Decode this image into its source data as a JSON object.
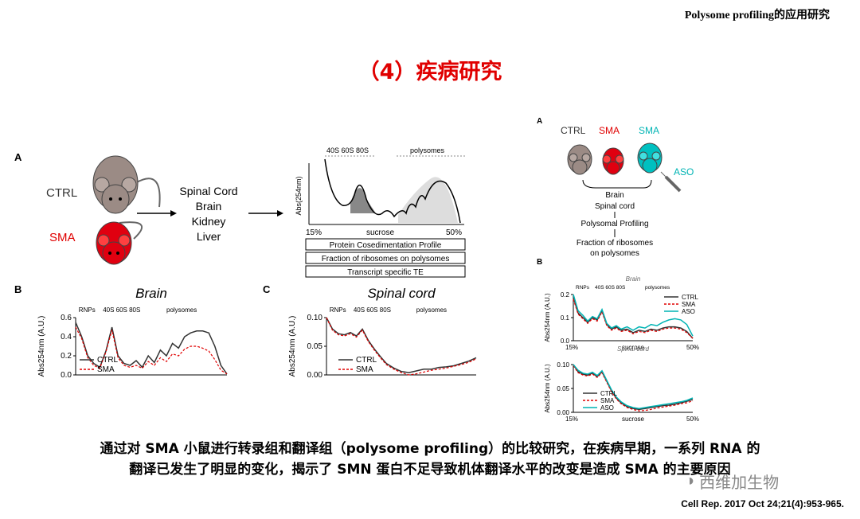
{
  "header": "Polysome profiling的应用研究",
  "title": "（4）疾病研究",
  "left_panel": {
    "panel_a": "A",
    "panel_b": "B",
    "panel_c": "C",
    "mouse_ctrl": "CTRL",
    "mouse_sma": "SMA",
    "tissues": [
      "Spinal Cord",
      "Brain",
      "Kidney",
      "Liver"
    ],
    "profile_top_labels": [
      "40S 60S 80S",
      "polysomes"
    ],
    "profile_ylabel": "Abs(254nm)",
    "profile_x_left": "15%",
    "profile_x_mid": "sucrose",
    "profile_x_right": "50%",
    "boxes": [
      "Protein Cosedimentation Profile",
      "Fraction of ribosomes on polysomes",
      "Transcript specific TE"
    ]
  },
  "chart_data": [
    {
      "id": "brain-left",
      "type": "line",
      "title": "Brain",
      "ylabel": "Abs254nm (A.U.)",
      "ylim": [
        0,
        0.6
      ],
      "yticks": [
        "0.0",
        "0.2",
        "0.4",
        "0.6"
      ],
      "region_labels": [
        "RNPs",
        "40S 60S 80S",
        "polysomes"
      ],
      "series": [
        {
          "name": "CTRL",
          "x": [
            0,
            0.04,
            0.08,
            0.12,
            0.16,
            0.2,
            0.24,
            0.28,
            0.32,
            0.36,
            0.4,
            0.44,
            0.48,
            0.52,
            0.56,
            0.6,
            0.64,
            0.68,
            0.72,
            0.76,
            0.8,
            0.84,
            0.88,
            0.92,
            0.96,
            1.0
          ],
          "values": [
            0.55,
            0.4,
            0.2,
            0.12,
            0.08,
            0.25,
            0.5,
            0.2,
            0.12,
            0.1,
            0.15,
            0.08,
            0.2,
            0.13,
            0.26,
            0.2,
            0.33,
            0.28,
            0.4,
            0.44,
            0.46,
            0.46,
            0.44,
            0.3,
            0.1,
            0.01
          ]
        },
        {
          "name": "SMA",
          "x": [
            0,
            0.04,
            0.08,
            0.12,
            0.16,
            0.2,
            0.24,
            0.28,
            0.32,
            0.36,
            0.4,
            0.44,
            0.48,
            0.52,
            0.56,
            0.6,
            0.64,
            0.68,
            0.72,
            0.76,
            0.8,
            0.84,
            0.88,
            0.92,
            0.96,
            1.0
          ],
          "values": [
            0.5,
            0.38,
            0.18,
            0.1,
            0.07,
            0.24,
            0.47,
            0.18,
            0.1,
            0.08,
            0.1,
            0.07,
            0.14,
            0.1,
            0.18,
            0.14,
            0.22,
            0.2,
            0.27,
            0.3,
            0.3,
            0.28,
            0.25,
            0.16,
            0.05,
            0.01
          ]
        }
      ]
    },
    {
      "id": "spinal-left",
      "type": "line",
      "title": "Spinal cord",
      "ylabel": "Abs254nm (A.U.)",
      "ylim": [
        0,
        0.1
      ],
      "yticks": [
        "0.00",
        "0.05",
        "0.10"
      ],
      "region_labels": [
        "RNPs",
        "40S 60S 80S",
        "polysomes"
      ],
      "series": [
        {
          "name": "CTRL",
          "x": [
            0,
            0.04,
            0.08,
            0.12,
            0.16,
            0.2,
            0.24,
            0.28,
            0.32,
            0.36,
            0.4,
            0.45,
            0.5,
            0.55,
            0.6,
            0.65,
            0.7,
            0.75,
            0.8,
            0.85,
            0.9,
            0.95,
            1.0
          ],
          "values": [
            0.1,
            0.08,
            0.072,
            0.07,
            0.074,
            0.068,
            0.08,
            0.06,
            0.045,
            0.032,
            0.02,
            0.012,
            0.006,
            0.004,
            0.007,
            0.01,
            0.01,
            0.013,
            0.014,
            0.016,
            0.02,
            0.024,
            0.03
          ]
        },
        {
          "name": "SMA",
          "x": [
            0,
            0.04,
            0.08,
            0.12,
            0.16,
            0.2,
            0.24,
            0.28,
            0.32,
            0.36,
            0.4,
            0.45,
            0.5,
            0.55,
            0.6,
            0.65,
            0.7,
            0.75,
            0.8,
            0.85,
            0.9,
            0.95,
            1.0
          ],
          "values": [
            0.1,
            0.078,
            0.07,
            0.068,
            0.072,
            0.066,
            0.078,
            0.058,
            0.043,
            0.03,
            0.018,
            0.01,
            0.004,
            0.0,
            0.002,
            0.005,
            0.008,
            0.01,
            0.012,
            0.015,
            0.018,
            0.022,
            0.028
          ]
        }
      ]
    },
    {
      "id": "brain-right",
      "type": "line",
      "title": "Brain",
      "ylabel": "Abs254nm (A.U.)",
      "ylim": [
        0,
        0.2
      ],
      "yticks": [
        "0.0",
        "0.1",
        "0.2"
      ],
      "xlabel": "sucrose",
      "x_range_labels": [
        "15%",
        "50%"
      ],
      "region_labels": [
        "RNPs",
        "40S 60S 80S",
        "polysomes"
      ],
      "series": [
        {
          "name": "CTRL",
          "x": [
            0,
            0.04,
            0.08,
            0.12,
            0.16,
            0.2,
            0.24,
            0.28,
            0.32,
            0.36,
            0.4,
            0.45,
            0.5,
            0.55,
            0.6,
            0.65,
            0.7,
            0.75,
            0.8,
            0.85,
            0.9,
            0.95,
            1.0
          ],
          "values": [
            0.19,
            0.12,
            0.1,
            0.08,
            0.1,
            0.09,
            0.13,
            0.07,
            0.05,
            0.06,
            0.045,
            0.05,
            0.035,
            0.045,
            0.04,
            0.05,
            0.045,
            0.055,
            0.06,
            0.06,
            0.055,
            0.04,
            0.01
          ]
        },
        {
          "name": "SMA",
          "x": [
            0,
            0.04,
            0.08,
            0.12,
            0.16,
            0.2,
            0.24,
            0.28,
            0.32,
            0.36,
            0.4,
            0.45,
            0.5,
            0.55,
            0.6,
            0.65,
            0.7,
            0.75,
            0.8,
            0.85,
            0.9,
            0.95,
            1.0
          ],
          "values": [
            0.18,
            0.115,
            0.095,
            0.075,
            0.095,
            0.085,
            0.125,
            0.065,
            0.045,
            0.055,
            0.04,
            0.045,
            0.03,
            0.04,
            0.035,
            0.045,
            0.04,
            0.05,
            0.055,
            0.055,
            0.05,
            0.035,
            0.01
          ]
        },
        {
          "name": "ASO",
          "x": [
            0,
            0.04,
            0.08,
            0.12,
            0.16,
            0.2,
            0.24,
            0.28,
            0.32,
            0.36,
            0.4,
            0.45,
            0.5,
            0.55,
            0.6,
            0.65,
            0.7,
            0.75,
            0.8,
            0.85,
            0.9,
            0.95,
            1.0
          ],
          "values": [
            0.2,
            0.13,
            0.11,
            0.085,
            0.105,
            0.095,
            0.135,
            0.075,
            0.055,
            0.065,
            0.05,
            0.06,
            0.045,
            0.06,
            0.055,
            0.07,
            0.065,
            0.08,
            0.09,
            0.095,
            0.09,
            0.07,
            0.02
          ]
        }
      ]
    },
    {
      "id": "spinal-right",
      "type": "line",
      "title": "Spinal cord",
      "ylabel": "Abs254nm (A.U.)",
      "ylim": [
        0,
        0.1
      ],
      "yticks": [
        "0.00",
        "0.05",
        "0.10"
      ],
      "xlabel": "sucrose",
      "x_range_labels": [
        "15%",
        "50%"
      ],
      "series": [
        {
          "name": "CTRL",
          "x": [
            0,
            0.04,
            0.08,
            0.12,
            0.16,
            0.2,
            0.24,
            0.28,
            0.32,
            0.36,
            0.4,
            0.45,
            0.5,
            0.55,
            0.6,
            0.65,
            0.7,
            0.75,
            0.8,
            0.85,
            0.9,
            0.95,
            1.0
          ],
          "values": [
            0.1,
            0.085,
            0.08,
            0.078,
            0.082,
            0.075,
            0.085,
            0.065,
            0.045,
            0.03,
            0.02,
            0.012,
            0.008,
            0.006,
            0.008,
            0.01,
            0.012,
            0.014,
            0.015,
            0.017,
            0.02,
            0.023,
            0.027
          ]
        },
        {
          "name": "SMA",
          "x": [
            0,
            0.04,
            0.08,
            0.12,
            0.16,
            0.2,
            0.24,
            0.28,
            0.32,
            0.36,
            0.4,
            0.45,
            0.5,
            0.55,
            0.6,
            0.65,
            0.7,
            0.75,
            0.8,
            0.85,
            0.9,
            0.95,
            1.0
          ],
          "values": [
            0.098,
            0.083,
            0.078,
            0.076,
            0.08,
            0.073,
            0.083,
            0.063,
            0.043,
            0.028,
            0.018,
            0.01,
            0.006,
            0.003,
            0.004,
            0.006,
            0.009,
            0.011,
            0.013,
            0.015,
            0.018,
            0.02,
            0.024
          ]
        },
        {
          "name": "ASO",
          "x": [
            0,
            0.04,
            0.08,
            0.12,
            0.16,
            0.2,
            0.24,
            0.28,
            0.32,
            0.36,
            0.4,
            0.45,
            0.5,
            0.55,
            0.6,
            0.65,
            0.7,
            0.75,
            0.8,
            0.85,
            0.9,
            0.95,
            1.0
          ],
          "values": [
            0.1,
            0.088,
            0.082,
            0.08,
            0.084,
            0.077,
            0.087,
            0.067,
            0.047,
            0.032,
            0.022,
            0.014,
            0.01,
            0.008,
            0.01,
            0.012,
            0.014,
            0.016,
            0.018,
            0.02,
            0.022,
            0.025,
            0.03
          ]
        }
      ]
    }
  ],
  "right_panel": {
    "panel_a": "A",
    "panel_b": "B",
    "mouse_ctrl": "CTRL",
    "mouse_sma": "SMA",
    "mouse_sma2": "SMA",
    "aso_label": "ASO",
    "flow": [
      "Brain",
      "Spinal cord",
      "Polysomal Profiling",
      "Fraction of ribosomes",
      "on polysomes"
    ]
  },
  "summary_line1": "通过对 SMA 小鼠进行转录组和翻译组（polysome profiling）的比较研究，在疾病早期，一系列 RNA 的",
  "summary_line2": "翻译已发生了明显的变化，揭示了 SMN 蛋白不足导致机体翻译水平的改变是造成 SMA 的主要原因",
  "citation": "Cell Rep. 2017 Oct 24;21(4):953-965.",
  "watermark": "西维加生物",
  "colors": {
    "title": "#e00000",
    "ctrl": "#333333",
    "sma": "#e00000",
    "aso": "#00b4b4"
  }
}
